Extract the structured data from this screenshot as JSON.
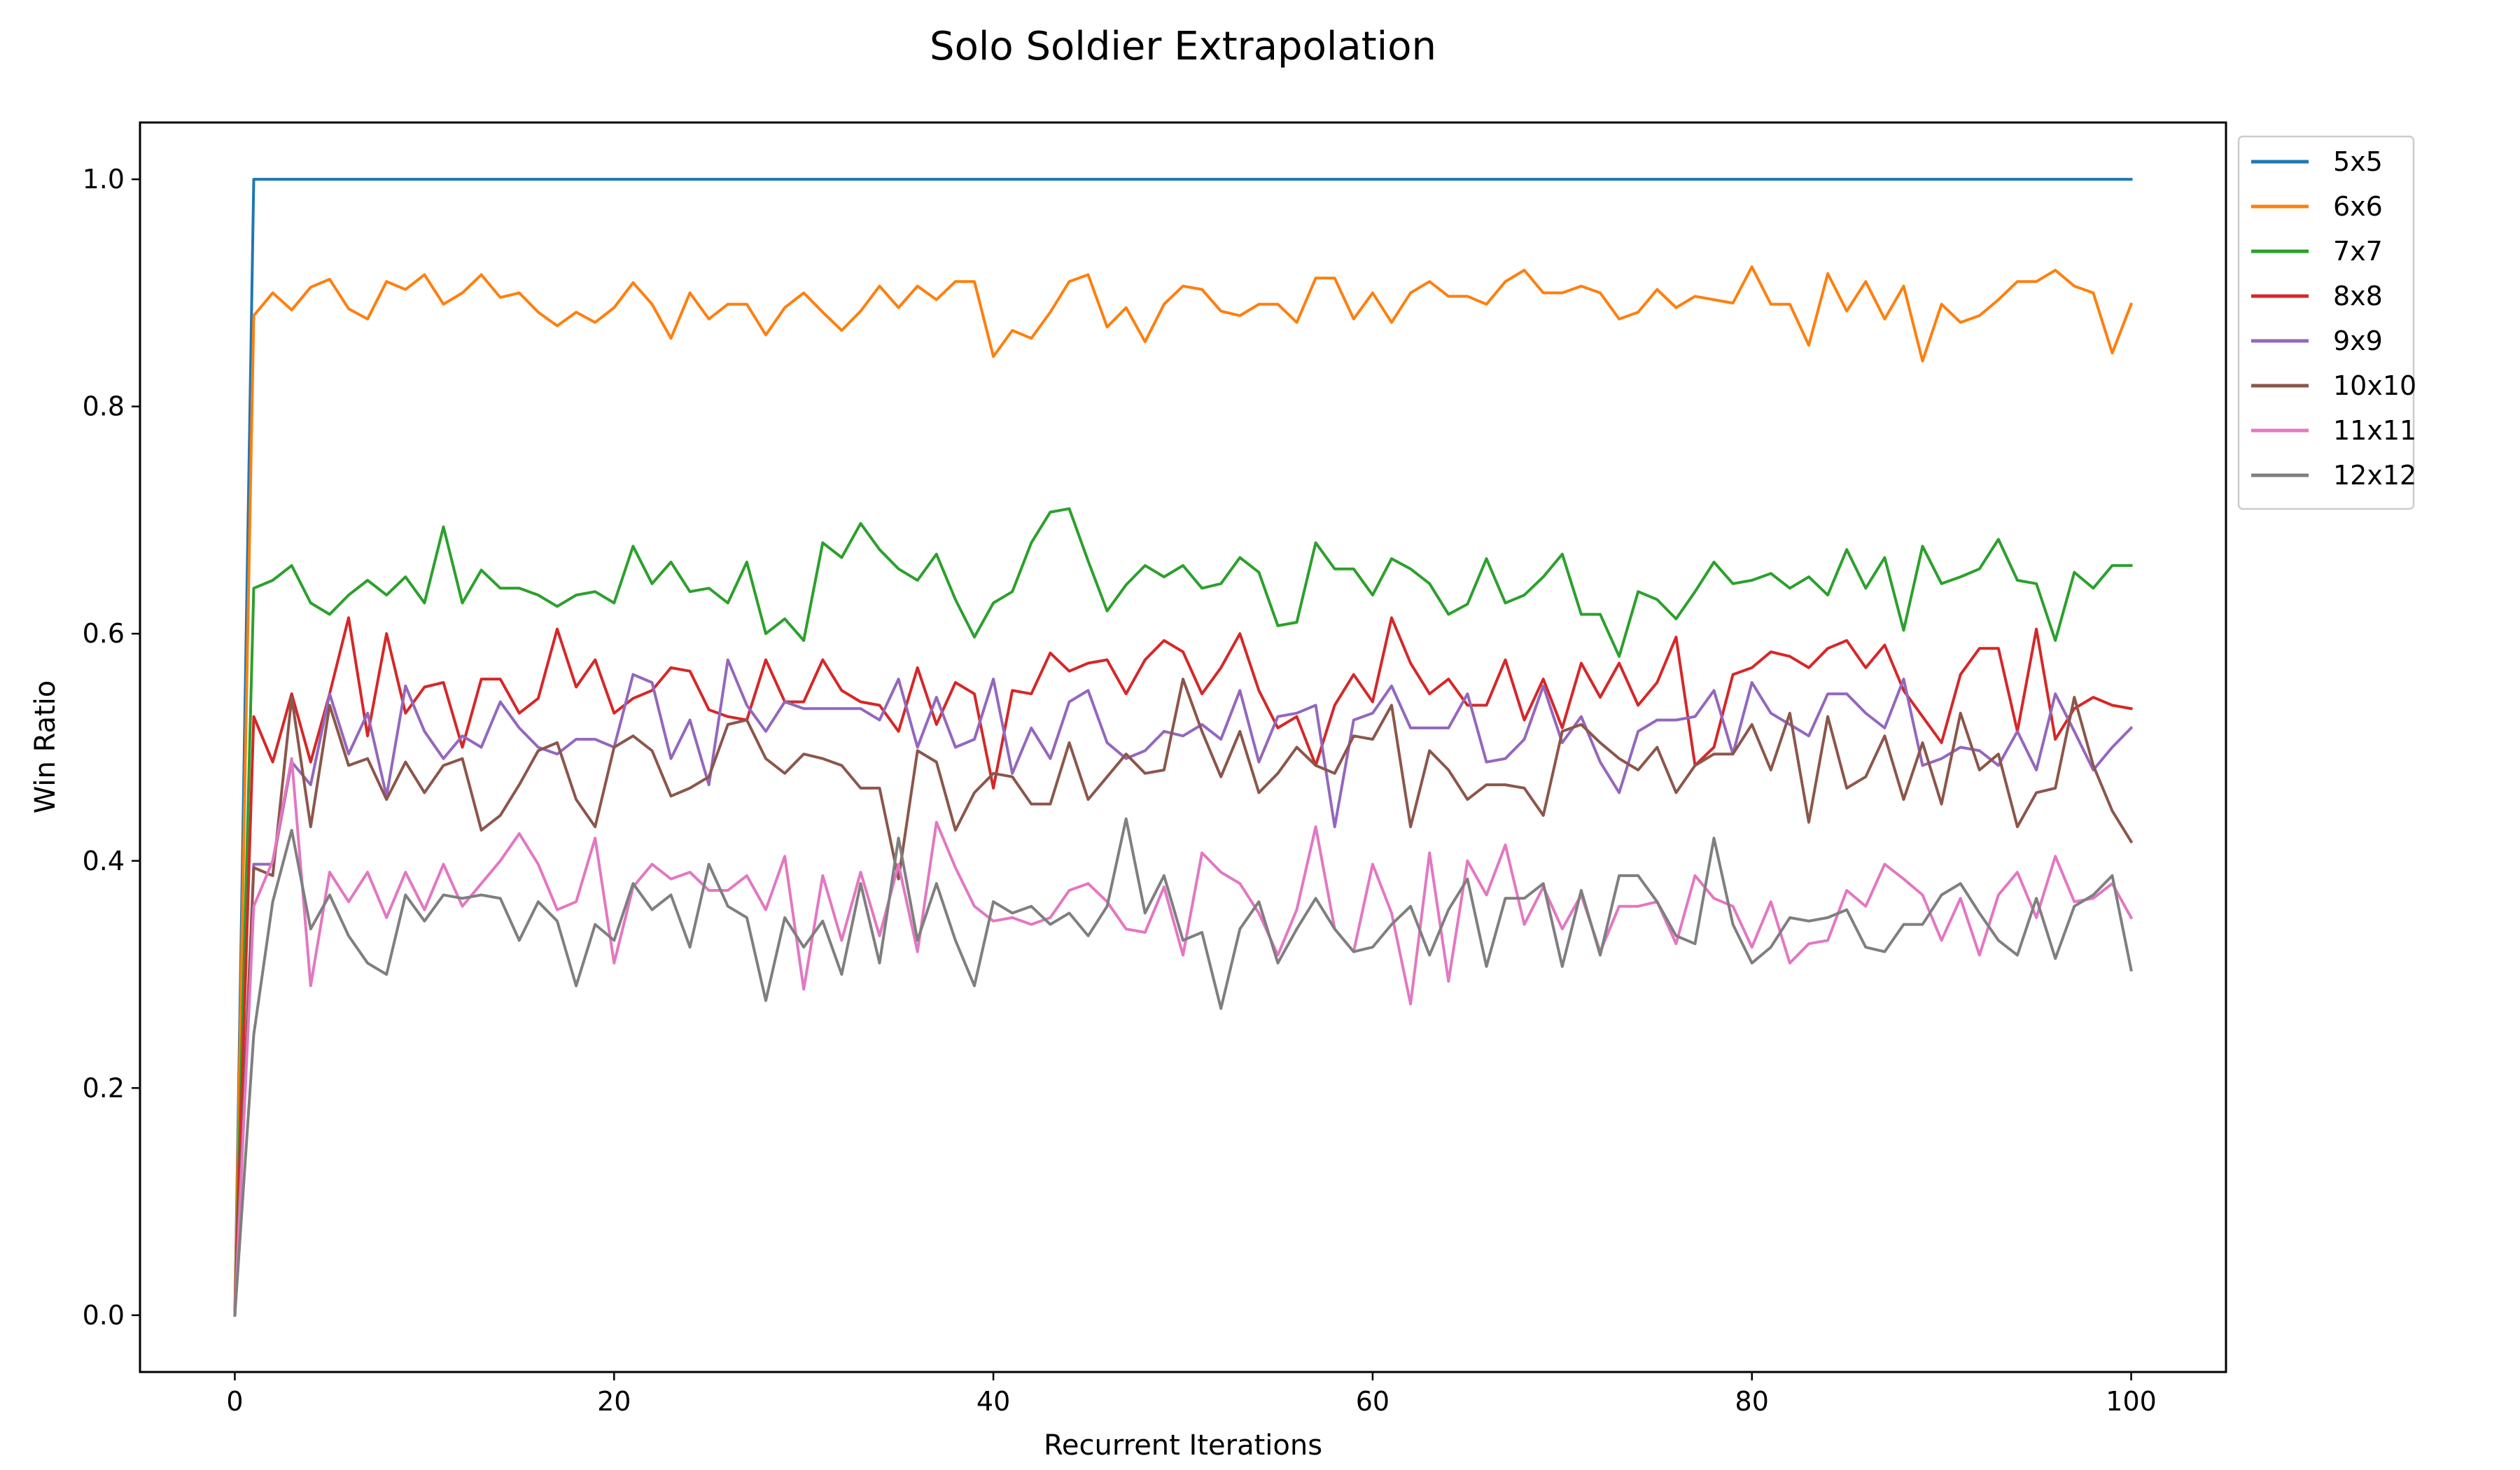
{
  "chart_data": {
    "type": "line",
    "title": "Solo Soldier Extrapolation",
    "xlabel": "Recurrent Iterations",
    "ylabel": "Win Ratio",
    "xlim": [
      -5,
      105
    ],
    "ylim": [
      -0.05,
      1.05
    ],
    "xticks": [
      "0",
      "20",
      "40",
      "60",
      "80",
      "100"
    ],
    "yticks": [
      "0.0",
      "0.2",
      "0.4",
      "0.6",
      "0.8",
      "1.0"
    ],
    "grid": false,
    "legend_position": "outside upper-right",
    "x_start": 0,
    "x_end": 100,
    "series": [
      {
        "name": "5x5",
        "color": "#1f77b4",
        "values": [
          0.0,
          1.0,
          1.0,
          1.0,
          1.0,
          1.0,
          1.0,
          1.0,
          1.0,
          1.0,
          1.0,
          1.0,
          1.0,
          1.0,
          1.0,
          1.0,
          1.0,
          1.0,
          1.0,
          1.0,
          1.0,
          1.0,
          1.0,
          1.0,
          1.0,
          1.0,
          1.0,
          1.0,
          1.0,
          1.0,
          1.0,
          1.0,
          1.0,
          1.0,
          1.0,
          1.0,
          1.0,
          1.0,
          1.0,
          1.0,
          1.0,
          1.0,
          1.0,
          1.0,
          1.0,
          1.0,
          1.0,
          1.0,
          1.0,
          1.0,
          1.0,
          1.0,
          1.0,
          1.0,
          1.0,
          1.0,
          1.0,
          1.0,
          1.0,
          1.0,
          1.0,
          1.0,
          1.0,
          1.0,
          1.0,
          1.0,
          1.0,
          1.0,
          1.0,
          1.0,
          1.0,
          1.0,
          1.0,
          1.0,
          1.0,
          1.0,
          1.0,
          1.0,
          1.0,
          1.0,
          1.0,
          1.0,
          1.0,
          1.0,
          1.0,
          1.0,
          1.0,
          1.0,
          1.0,
          1.0,
          1.0,
          1.0,
          1.0,
          1.0,
          1.0,
          1.0,
          1.0,
          1.0,
          1.0,
          1.0,
          1.0
        ]
      },
      {
        "name": "6x6",
        "color": "#ff7f0e",
        "values": [
          0.0,
          0.88,
          0.9,
          0.885,
          0.905,
          0.912,
          0.886,
          0.877,
          0.91,
          0.903,
          0.916,
          0.89,
          0.9,
          0.916,
          0.896,
          0.9,
          0.883,
          0.871,
          0.883,
          0.874,
          0.887,
          0.909,
          0.89,
          0.86,
          0.9,
          0.877,
          0.89,
          0.89,
          0.863,
          0.887,
          0.9,
          0.883,
          0.867,
          0.884,
          0.906,
          0.887,
          0.906,
          0.894,
          0.91,
          0.91,
          0.844,
          0.867,
          0.86,
          0.883,
          0.91,
          0.916,
          0.87,
          0.887,
          0.857,
          0.89,
          0.906,
          0.903,
          0.884,
          0.88,
          0.89,
          0.89,
          0.874,
          0.913,
          0.913,
          0.877,
          0.9,
          0.874,
          0.9,
          0.91,
          0.897,
          0.897,
          0.89,
          0.91,
          0.92,
          0.9,
          0.9,
          0.906,
          0.9,
          0.877,
          0.883,
          0.903,
          0.887,
          0.897,
          0.894,
          0.891,
          0.923,
          0.89,
          0.89,
          0.854,
          0.917,
          0.884,
          0.91,
          0.877,
          0.906,
          0.84,
          0.89,
          0.874,
          0.88,
          0.894,
          0.91,
          0.91,
          0.92,
          0.906,
          0.9,
          0.847,
          0.89
        ]
      },
      {
        "name": "7x7",
        "color": "#2ca02c",
        "values": [
          0.0,
          0.64,
          0.647,
          0.66,
          0.627,
          0.617,
          0.634,
          0.647,
          0.634,
          0.65,
          0.627,
          0.694,
          0.627,
          0.656,
          0.64,
          0.64,
          0.634,
          0.624,
          0.634,
          0.637,
          0.627,
          0.677,
          0.644,
          0.663,
          0.637,
          0.64,
          0.627,
          0.663,
          0.6,
          0.613,
          0.594,
          0.68,
          0.667,
          0.697,
          0.674,
          0.657,
          0.647,
          0.67,
          0.63,
          0.597,
          0.627,
          0.637,
          0.68,
          0.707,
          0.71,
          0.664,
          0.62,
          0.643,
          0.66,
          0.65,
          0.66,
          0.64,
          0.644,
          0.667,
          0.654,
          0.607,
          0.61,
          0.68,
          0.657,
          0.657,
          0.634,
          0.666,
          0.657,
          0.644,
          0.617,
          0.626,
          0.666,
          0.627,
          0.634,
          0.65,
          0.67,
          0.617,
          0.617,
          0.58,
          0.637,
          0.63,
          0.613,
          0.637,
          0.663,
          0.644,
          0.647,
          0.653,
          0.64,
          0.65,
          0.634,
          0.674,
          0.64,
          0.667,
          0.603,
          0.677,
          0.644,
          0.65,
          0.657,
          0.683,
          0.647,
          0.644,
          0.594,
          0.654,
          0.64,
          0.66,
          0.66
        ]
      },
      {
        "name": "8x8",
        "color": "#d62728",
        "values": [
          0.0,
          0.527,
          0.487,
          0.547,
          0.487,
          0.547,
          0.614,
          0.51,
          0.6,
          0.53,
          0.553,
          0.557,
          0.5,
          0.56,
          0.56,
          0.53,
          0.543,
          0.604,
          0.553,
          0.577,
          0.53,
          0.543,
          0.55,
          0.57,
          0.567,
          0.533,
          0.527,
          0.524,
          0.577,
          0.54,
          0.54,
          0.577,
          0.55,
          0.54,
          0.537,
          0.514,
          0.57,
          0.52,
          0.557,
          0.547,
          0.464,
          0.55,
          0.547,
          0.583,
          0.567,
          0.574,
          0.577,
          0.547,
          0.577,
          0.594,
          0.584,
          0.547,
          0.57,
          0.6,
          0.55,
          0.517,
          0.527,
          0.484,
          0.537,
          0.564,
          0.54,
          0.614,
          0.574,
          0.547,
          0.56,
          0.537,
          0.537,
          0.577,
          0.524,
          0.56,
          0.517,
          0.574,
          0.544,
          0.574,
          0.537,
          0.557,
          0.597,
          0.484,
          0.5,
          0.564,
          0.57,
          0.584,
          0.58,
          0.57,
          0.587,
          0.594,
          0.57,
          0.59,
          0.55,
          0.527,
          0.504,
          0.564,
          0.587,
          0.587,
          0.514,
          0.604,
          0.507,
          0.534,
          0.544,
          0.537,
          0.534
        ]
      },
      {
        "name": "9x9",
        "color": "#9467bd",
        "values": [
          0.0,
          0.397,
          0.397,
          0.487,
          0.467,
          0.547,
          0.494,
          0.53,
          0.457,
          0.554,
          0.514,
          0.49,
          0.51,
          0.5,
          0.54,
          0.517,
          0.5,
          0.494,
          0.507,
          0.507,
          0.5,
          0.564,
          0.557,
          0.49,
          0.524,
          0.467,
          0.577,
          0.537,
          0.514,
          0.54,
          0.534,
          0.534,
          0.534,
          0.534,
          0.524,
          0.56,
          0.5,
          0.544,
          0.5,
          0.507,
          0.56,
          0.477,
          0.517,
          0.49,
          0.54,
          0.55,
          0.504,
          0.49,
          0.497,
          0.514,
          0.51,
          0.52,
          0.507,
          0.55,
          0.487,
          0.527,
          0.53,
          0.537,
          0.43,
          0.524,
          0.53,
          0.554,
          0.517,
          0.517,
          0.517,
          0.547,
          0.487,
          0.49,
          0.507,
          0.554,
          0.504,
          0.527,
          0.487,
          0.46,
          0.514,
          0.524,
          0.524,
          0.527,
          0.55,
          0.494,
          0.557,
          0.53,
          0.52,
          0.51,
          0.547,
          0.547,
          0.53,
          0.517,
          0.56,
          0.484,
          0.49,
          0.5,
          0.497,
          0.484,
          0.514,
          0.48,
          0.547,
          0.514,
          0.48,
          0.5,
          0.517
        ]
      },
      {
        "name": "10x10",
        "color": "#8c564b",
        "values": [
          0.0,
          0.394,
          0.387,
          0.544,
          0.43,
          0.537,
          0.484,
          0.49,
          0.454,
          0.487,
          0.46,
          0.484,
          0.49,
          0.427,
          0.44,
          0.467,
          0.497,
          0.504,
          0.454,
          0.43,
          0.5,
          0.51,
          0.497,
          0.457,
          0.464,
          0.474,
          0.52,
          0.524,
          0.49,
          0.477,
          0.494,
          0.49,
          0.484,
          0.464,
          0.464,
          0.384,
          0.497,
          0.487,
          0.427,
          0.46,
          0.477,
          0.474,
          0.45,
          0.45,
          0.504,
          0.454,
          0.474,
          0.494,
          0.477,
          0.48,
          0.56,
          0.514,
          0.474,
          0.514,
          0.46,
          0.477,
          0.5,
          0.484,
          0.477,
          0.51,
          0.507,
          0.537,
          0.43,
          0.497,
          0.48,
          0.454,
          0.467,
          0.467,
          0.464,
          0.44,
          0.514,
          0.52,
          0.504,
          0.49,
          0.48,
          0.5,
          0.46,
          0.484,
          0.494,
          0.494,
          0.52,
          0.48,
          0.53,
          0.434,
          0.527,
          0.464,
          0.474,
          0.51,
          0.454,
          0.504,
          0.45,
          0.53,
          0.48,
          0.494,
          0.43,
          0.46,
          0.464,
          0.544,
          0.484,
          0.444,
          0.417
        ]
      },
      {
        "name": "11x11",
        "color": "#e377c2",
        "values": [
          0.0,
          0.36,
          0.4,
          0.49,
          0.29,
          0.39,
          0.364,
          0.39,
          0.35,
          0.39,
          0.357,
          0.397,
          0.36,
          0.38,
          0.4,
          0.424,
          0.397,
          0.357,
          0.364,
          0.42,
          0.31,
          0.377,
          0.397,
          0.384,
          0.39,
          0.374,
          0.374,
          0.387,
          0.357,
          0.404,
          0.287,
          0.387,
          0.33,
          0.39,
          0.334,
          0.397,
          0.32,
          0.434,
          0.394,
          0.36,
          0.347,
          0.35,
          0.344,
          0.35,
          0.374,
          0.38,
          0.364,
          0.34,
          0.337,
          0.377,
          0.317,
          0.407,
          0.39,
          0.38,
          0.354,
          0.317,
          0.357,
          0.43,
          0.34,
          0.32,
          0.397,
          0.354,
          0.274,
          0.407,
          0.294,
          0.4,
          0.37,
          0.414,
          0.344,
          0.377,
          0.34,
          0.37,
          0.32,
          0.36,
          0.36,
          0.364,
          0.327,
          0.387,
          0.367,
          0.36,
          0.324,
          0.364,
          0.31,
          0.327,
          0.33,
          0.374,
          0.36,
          0.397,
          0.384,
          0.37,
          0.33,
          0.367,
          0.317,
          0.37,
          0.39,
          0.35,
          0.404,
          0.364,
          0.367,
          0.38,
          0.35
        ]
      },
      {
        "name": "12x12",
        "color": "#7f7f7f",
        "values": [
          0.0,
          0.247,
          0.364,
          0.427,
          0.34,
          0.37,
          0.334,
          0.31,
          0.3,
          0.37,
          0.347,
          0.37,
          0.367,
          0.37,
          0.367,
          0.33,
          0.364,
          0.347,
          0.29,
          0.344,
          0.33,
          0.38,
          0.357,
          0.37,
          0.324,
          0.397,
          0.36,
          0.35,
          0.277,
          0.35,
          0.324,
          0.347,
          0.3,
          0.38,
          0.31,
          0.42,
          0.33,
          0.38,
          0.33,
          0.29,
          0.364,
          0.354,
          0.36,
          0.344,
          0.354,
          0.334,
          0.36,
          0.437,
          0.354,
          0.387,
          0.33,
          0.337,
          0.27,
          0.34,
          0.364,
          0.31,
          0.34,
          0.367,
          0.34,
          0.32,
          0.324,
          0.344,
          0.36,
          0.317,
          0.357,
          0.384,
          0.307,
          0.367,
          0.367,
          0.38,
          0.307,
          0.374,
          0.317,
          0.387,
          0.387,
          0.364,
          0.334,
          0.327,
          0.42,
          0.344,
          0.31,
          0.324,
          0.35,
          0.347,
          0.35,
          0.357,
          0.324,
          0.32,
          0.344,
          0.344,
          0.37,
          0.38,
          0.354,
          0.33,
          0.317,
          0.367,
          0.314,
          0.36,
          0.37,
          0.387,
          0.304
        ]
      }
    ]
  }
}
